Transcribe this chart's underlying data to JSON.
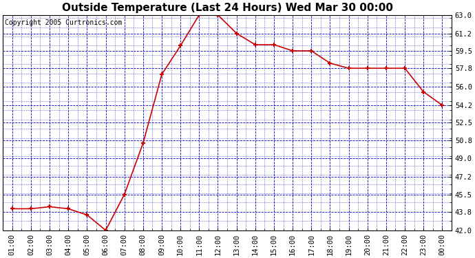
{
  "title": "Outside Temperature (Last 24 Hours) Wed Mar 30 00:00",
  "copyright": "Copyright 2005 Curtronics.com",
  "x_labels": [
    "01:00",
    "02:00",
    "03:00",
    "04:00",
    "05:00",
    "06:00",
    "07:00",
    "08:00",
    "09:00",
    "10:00",
    "11:00",
    "12:00",
    "13:00",
    "14:00",
    "15:00",
    "16:00",
    "17:00",
    "18:00",
    "19:00",
    "20:00",
    "21:00",
    "22:00",
    "23:00",
    "00:00"
  ],
  "y_values": [
    44.1,
    44.1,
    44.3,
    44.1,
    43.5,
    42.0,
    45.5,
    50.5,
    57.2,
    60.0,
    63.0,
    63.0,
    61.2,
    60.1,
    60.1,
    59.5,
    59.5,
    58.3,
    57.8,
    57.8,
    57.8,
    57.8,
    55.5,
    54.2
  ],
  "line_color": "#cc0000",
  "marker_color": "#cc0000",
  "bg_color": "#ffffff",
  "plot_bg_color": "#ffffff",
  "grid_color": "#0000bb",
  "border_color": "#000000",
  "title_fontsize": 11,
  "copyright_fontsize": 7,
  "tick_fontsize": 7.5,
  "ytick_labels": [
    42.0,
    43.8,
    45.5,
    47.2,
    49.0,
    50.8,
    52.5,
    54.2,
    56.0,
    57.8,
    59.5,
    61.2,
    63.0
  ],
  "ylim": [
    42.0,
    63.0
  ],
  "figwidth": 6.9,
  "figheight": 3.75,
  "dpi": 100
}
